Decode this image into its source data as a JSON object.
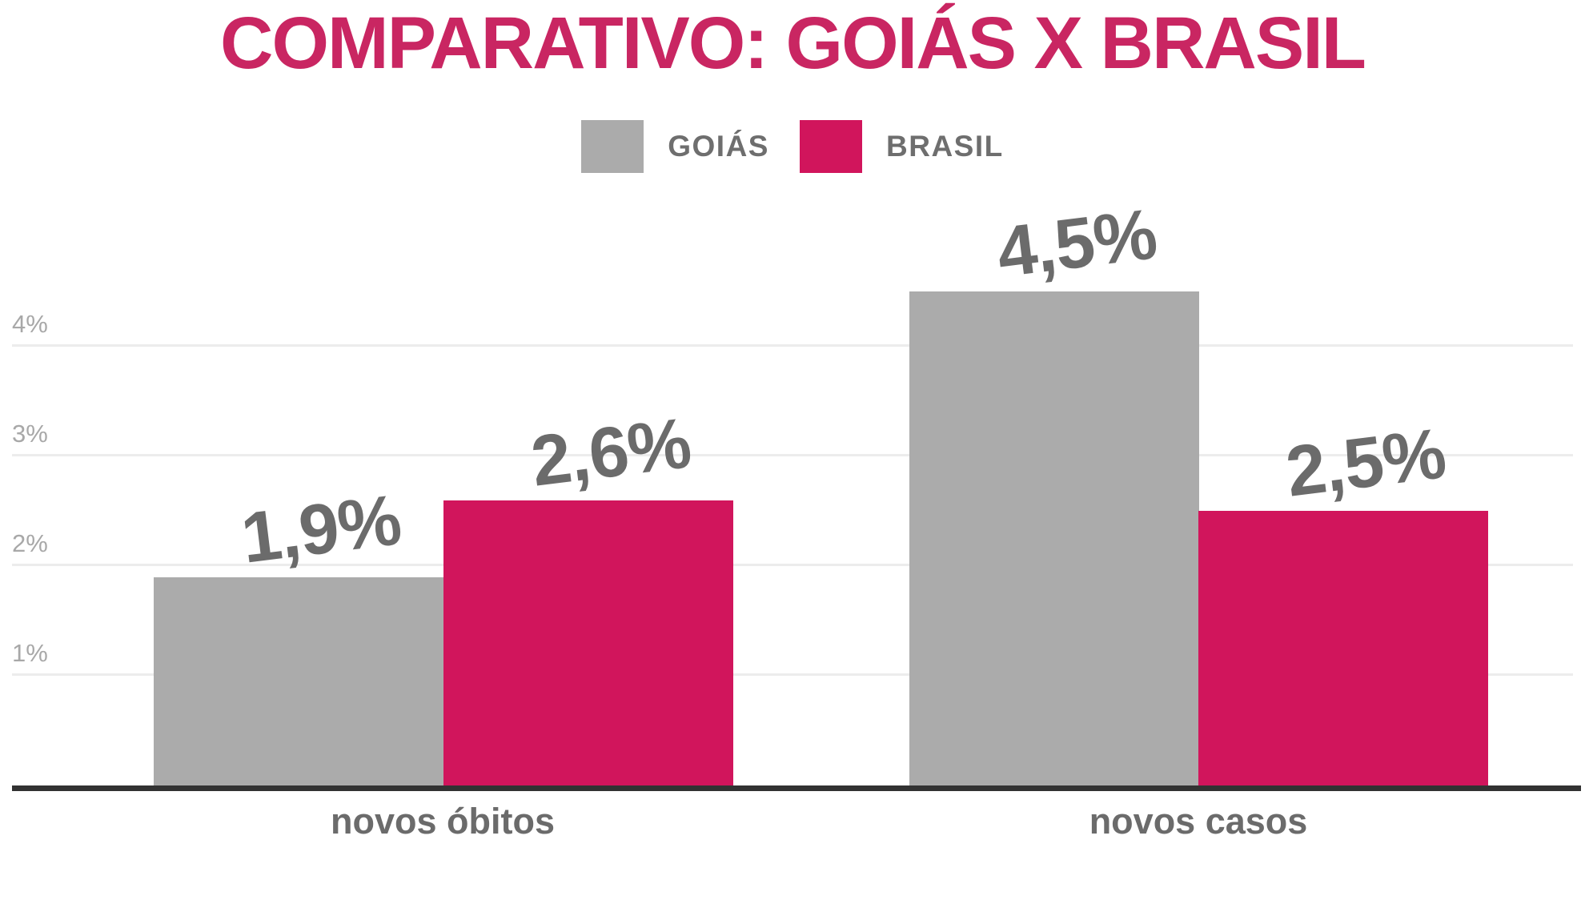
{
  "chart_data": {
    "type": "bar",
    "title": "COMPARATIVO: GOIÁS X BRASIL",
    "categories": [
      "novos óbitos",
      "novos casos"
    ],
    "series": [
      {
        "name": "GOIÁS",
        "color": "#ababab",
        "values": [
          1.9,
          4.5
        ],
        "value_labels": [
          "1,9%",
          "4,5%"
        ]
      },
      {
        "name": "BRASIL",
        "color": "#d1155c",
        "values": [
          2.6,
          2.5
        ],
        "value_labels": [
          "2,6%",
          "2,5%"
        ]
      }
    ],
    "ylim": [
      0,
      4.6
    ],
    "yticks": {
      "values": [
        1,
        2,
        3,
        4
      ],
      "labels": [
        "1%",
        "2%",
        "3%",
        "4%"
      ]
    },
    "grid": true,
    "legend_position": "top-center",
    "xlabel": "",
    "ylabel": ""
  },
  "colors": {
    "title": "#c92662",
    "bar_goias": "#ababab",
    "bar_brasil": "#d1155c",
    "data_label": "#6b6b6b",
    "category_label": "#6b6b6b",
    "legend_label": "#6e6e6e",
    "tick_label": "#a8a8a8",
    "gridline": "#ececec",
    "axis_line": "#323232",
    "background": "#ffffff"
  }
}
